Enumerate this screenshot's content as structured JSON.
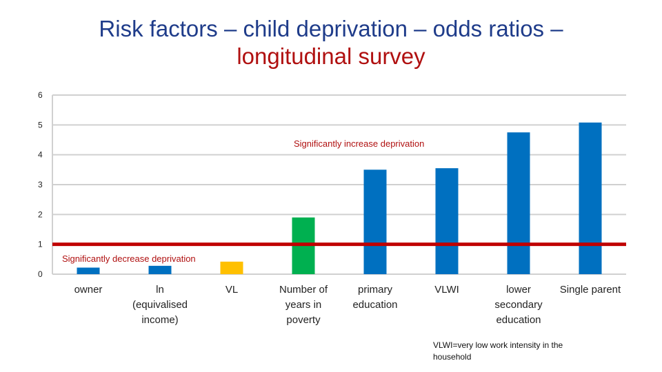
{
  "title": {
    "line1": "Risk factors – child deprivation – odds ratios –",
    "line2": "longitudinal survey"
  },
  "chart_data": {
    "type": "bar",
    "categories": [
      "owner",
      "ln\n(equivalised\nincome)",
      "VL",
      "Number of\nyears in\npoverty",
      "primary\neducation",
      "VLWI",
      "lower\nsecondary\neducation",
      "Single parent"
    ],
    "values": [
      0.22,
      0.28,
      0.42,
      1.9,
      3.5,
      3.55,
      4.75,
      5.08
    ],
    "colors": [
      "#0070c0",
      "#0070c0",
      "#ffc000",
      "#00b050",
      "#0070c0",
      "#0070c0",
      "#0070c0",
      "#0070c0"
    ],
    "ylim": [
      0,
      6
    ],
    "yticks": [
      "0",
      "1",
      "2",
      "3",
      "4",
      "5",
      "6"
    ],
    "reference_line": {
      "value": 1.0,
      "color": "#c00000"
    },
    "grid": true,
    "annotations": {
      "increase": "Significantly increase deprivation",
      "decrease": "Significantly decrease deprivation"
    }
  },
  "footnote": "VLWI=very low work intensity in the household"
}
